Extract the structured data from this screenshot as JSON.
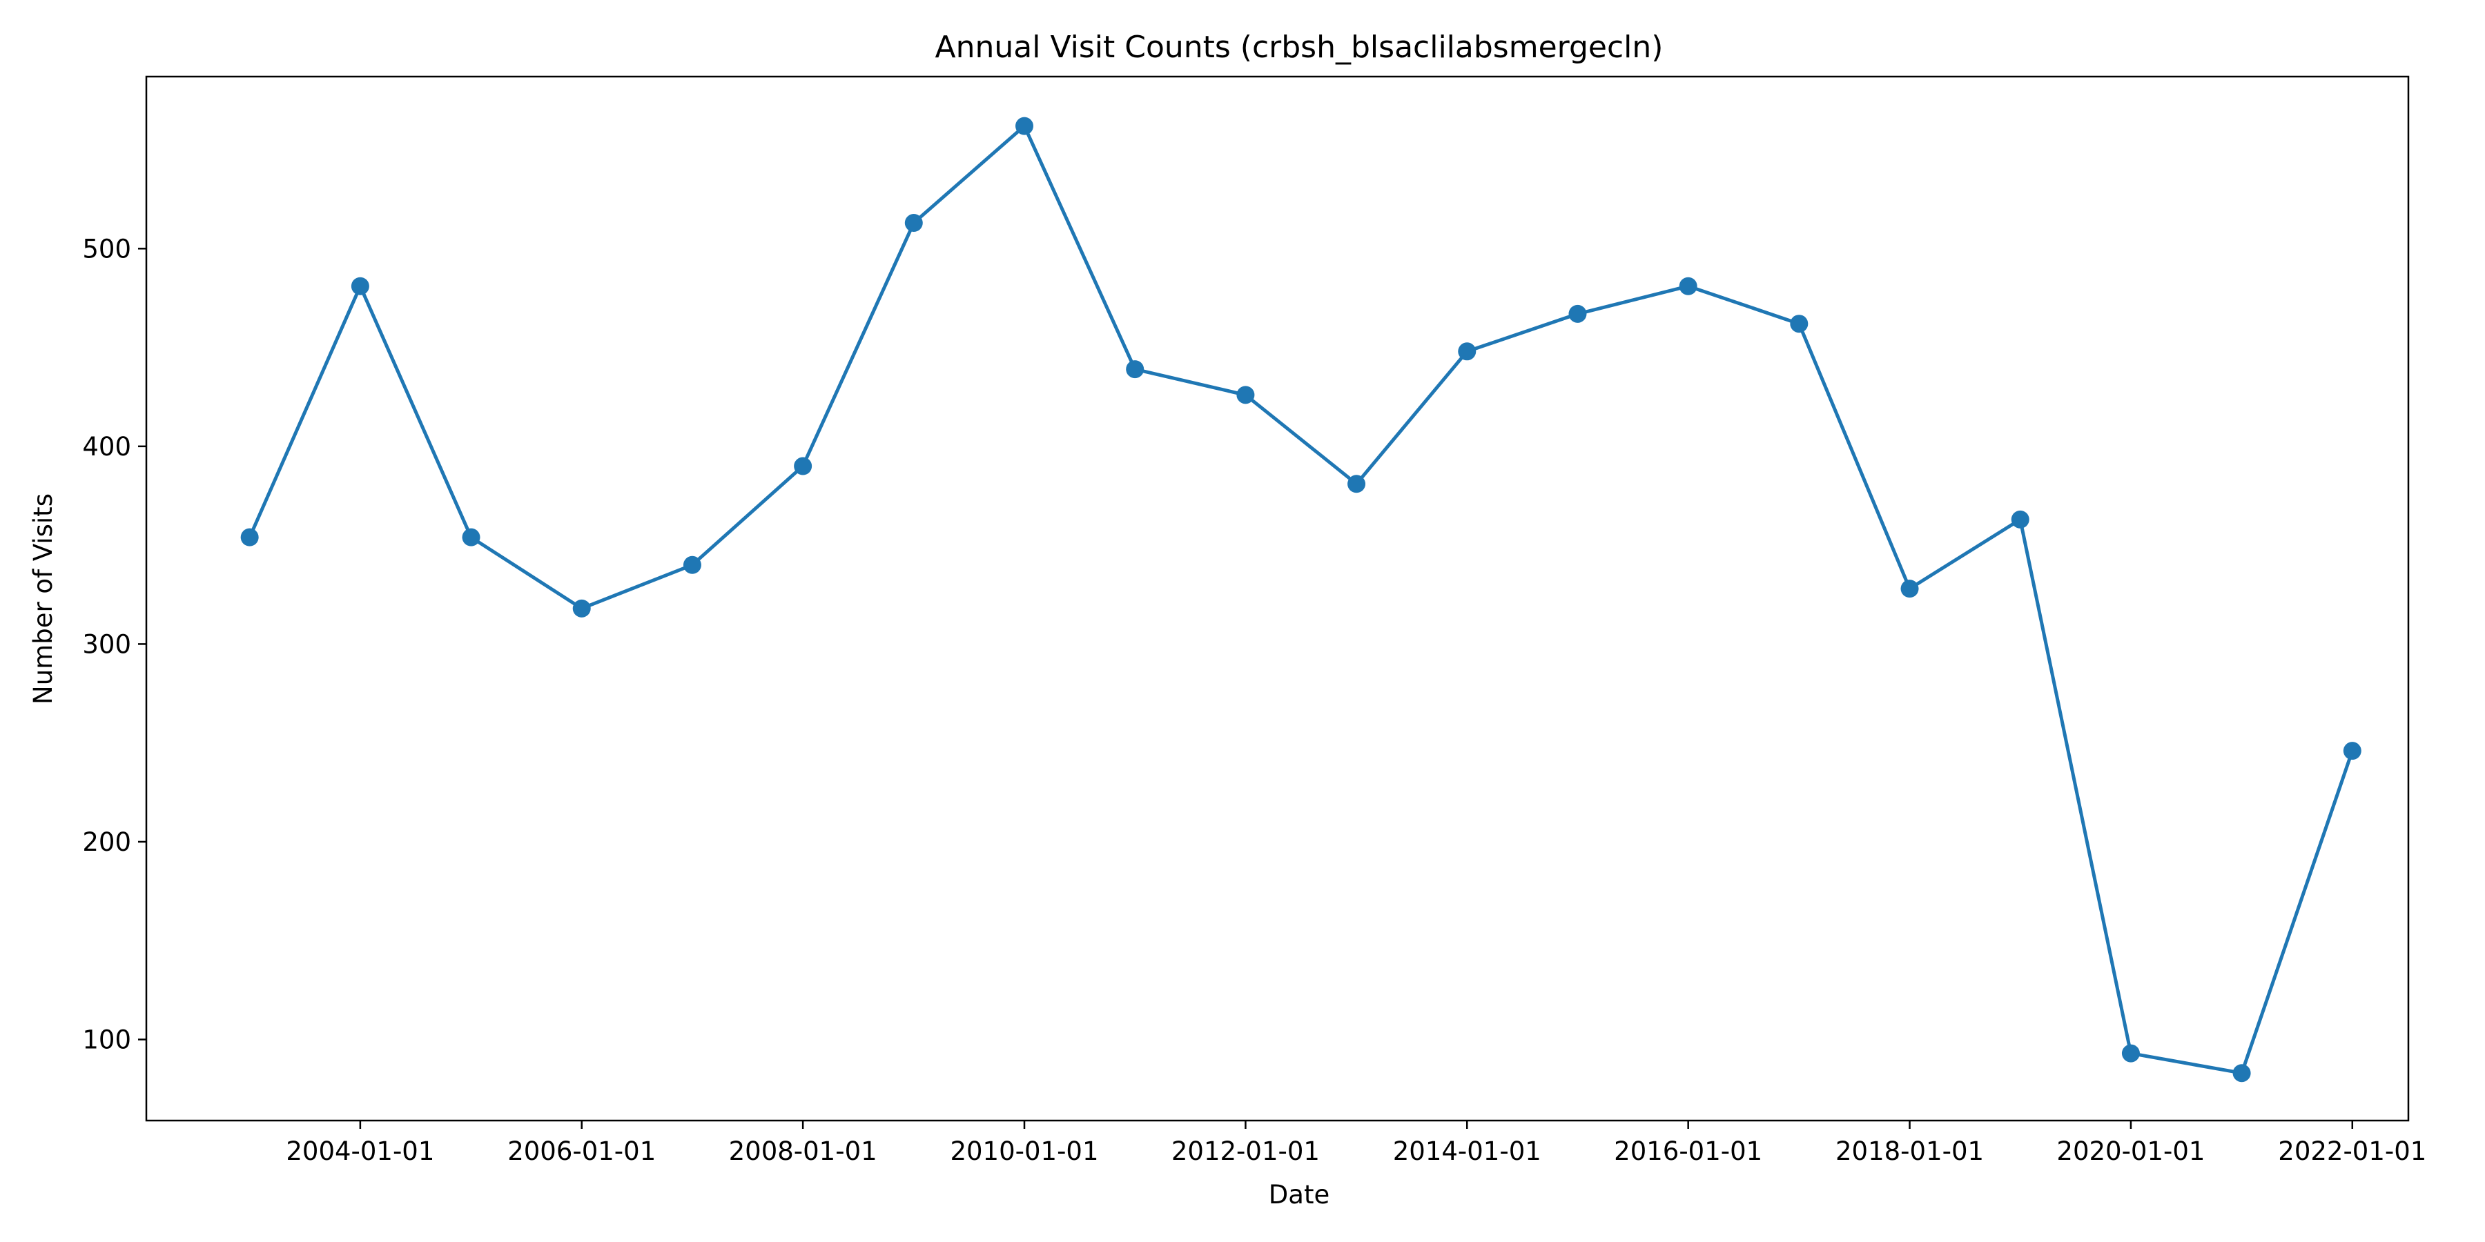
{
  "chart_data": {
    "type": "line",
    "title": "Annual Visit Counts (crbsh_blsaclilabsmergecln)",
    "xlabel": "Date",
    "ylabel": "Number of Visits",
    "x": [
      "2003-01-01",
      "2004-01-01",
      "2005-01-01",
      "2006-01-01",
      "2007-01-01",
      "2008-01-01",
      "2009-01-01",
      "2010-01-01",
      "2011-01-01",
      "2012-01-01",
      "2013-01-01",
      "2014-01-01",
      "2015-01-01",
      "2016-01-01",
      "2017-01-01",
      "2018-01-01",
      "2019-01-01",
      "2020-01-01",
      "2021-01-01",
      "2022-01-01"
    ],
    "series": [
      {
        "values": [
          354,
          481,
          354,
          318,
          340,
          390,
          513,
          562,
          439,
          426,
          381,
          448,
          467,
          481,
          462,
          328,
          363,
          93,
          83,
          246
        ],
        "color": "#1f77b4",
        "marker": "circle"
      }
    ],
    "xticks": [
      "2004-01-01",
      "2006-01-01",
      "2008-01-01",
      "2010-01-01",
      "2012-01-01",
      "2014-01-01",
      "2016-01-01",
      "2018-01-01",
      "2020-01-01",
      "2022-01-01"
    ],
    "yticks": [
      100,
      200,
      300,
      400,
      500
    ],
    "xlim": [
      "2002-01-25",
      "2022-07-05"
    ],
    "ylim": [
      59,
      587
    ],
    "grid": false,
    "legend": false
  }
}
